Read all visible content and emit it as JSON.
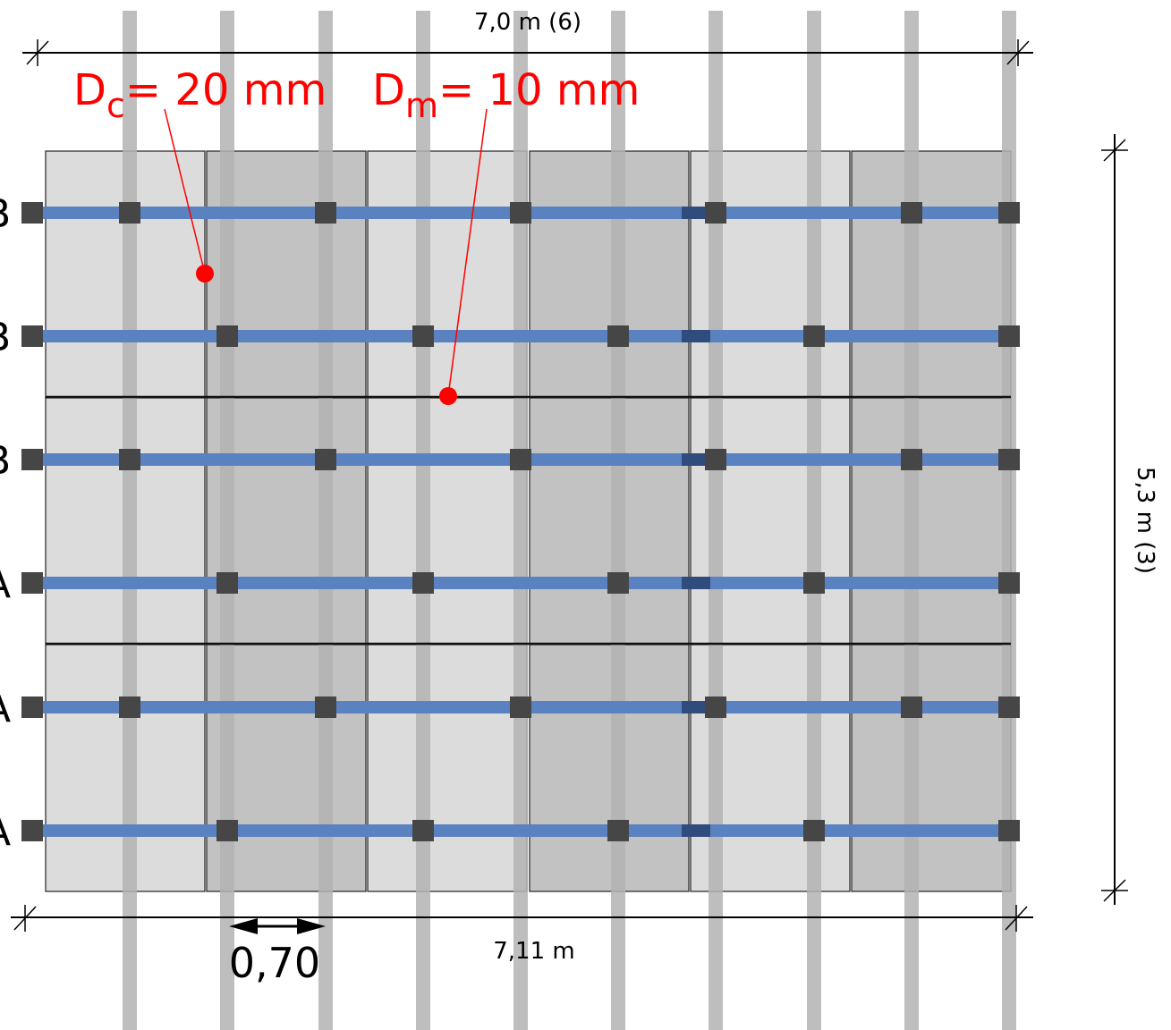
{
  "dimensions": {
    "top_width": "7,0 m (6)",
    "bottom_width": "7,11 m",
    "right_height": "5,3 m (3)",
    "spacing": "0,70"
  },
  "annotations": {
    "dc_label": "D",
    "dc_subscript": "c",
    "dc_value": "= 20 mm",
    "dm_label": "D",
    "dm_subscript": "m",
    "dm_value": "= 10 mm"
  },
  "row_labels": [
    "B",
    "B",
    "B",
    "A",
    "A",
    "A"
  ],
  "colors": {
    "panel_light": "#dcdcdc",
    "panel_dark": "#c2c2c2",
    "rail_vertical": "#b3b3b3",
    "rail_horizontal": "#5a82c0",
    "clamp": "#464646",
    "joint": "#2f4c7d",
    "annotation": "#ff0000"
  }
}
